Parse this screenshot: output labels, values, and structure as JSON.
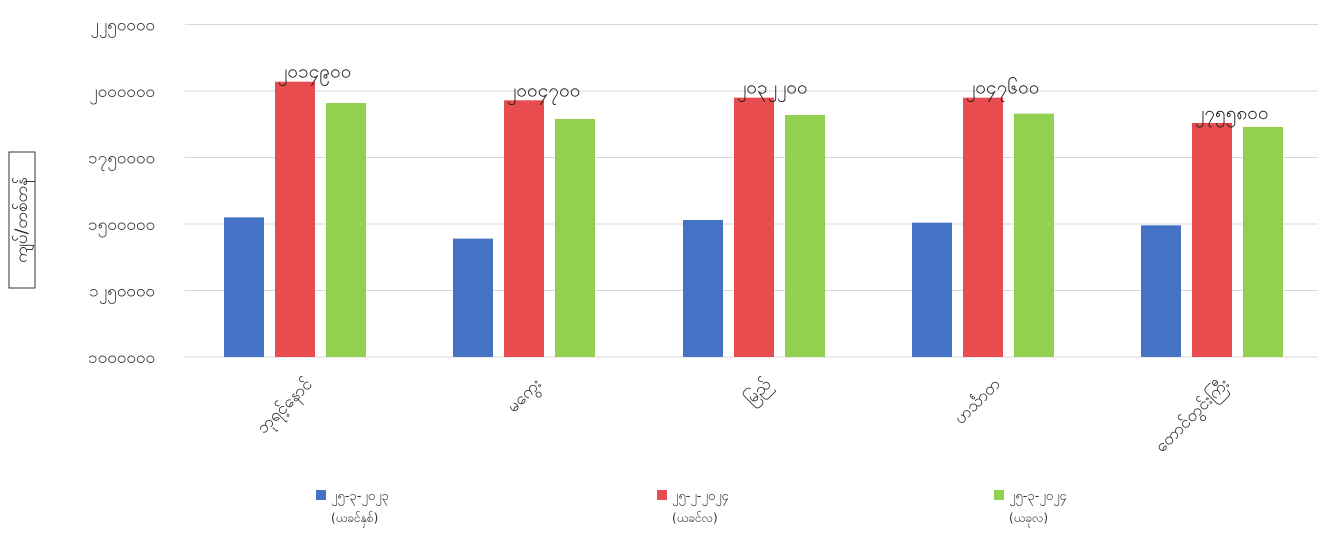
{
  "chart_data": {
    "type": "bar",
    "ylabel": "ကျပ်/တစ်တန်",
    "ylim": [
      1000000,
      2500000
    ],
    "yticks": [
      1000000,
      1250000,
      1500000,
      1750000,
      2000000,
      2250000
    ],
    "ytick_labels": [
      "၁၀၀၀၀၀၀",
      "၁၂၅၀၀၀၀",
      "၁၅၀၀၀၀၀",
      "၁၇၅၀၀၀၀",
      "၂၀၀၀၀၀၀",
      "၂၂၅၀၀၀၀"
    ],
    "categories": [
      "ဘုရင့်နောင်",
      "မကွေး",
      "မြည်",
      "ဟင်္သာတ",
      "တောင်တွင်းကြီး"
    ],
    "series": [
      {
        "name": "၂၅-၃-၂၀၂၃",
        "sub": "(ယခင်နှစ်)",
        "color": "#4472c4",
        "values": [
          1525000,
          1445000,
          1515000,
          1505000,
          1495000
        ]
      },
      {
        "name": "၂၅-၂-၂၀၂၄",
        "sub": "(ယခင်လ)",
        "color": "#e84c4f",
        "values": [
          2035000,
          1965000,
          1975000,
          1975000,
          1880000
        ]
      },
      {
        "name": "၂၅-၃-၂၀၂၄",
        "sub": "(ယခုလ)",
        "color": "#92d14f",
        "values": [
          1955000,
          1895000,
          1910000,
          1915000,
          1865000
        ]
      }
    ],
    "data_labels": [
      "၂၀၁၄၉၀၀",
      "၂၀၀၄၇၀၀",
      "၂၀၃၂၂၀၀",
      "၂၀၄၇၆၀၀",
      "၂၇၅၅၈၀၀"
    ],
    "grid": true,
    "legend": "bottom"
  }
}
